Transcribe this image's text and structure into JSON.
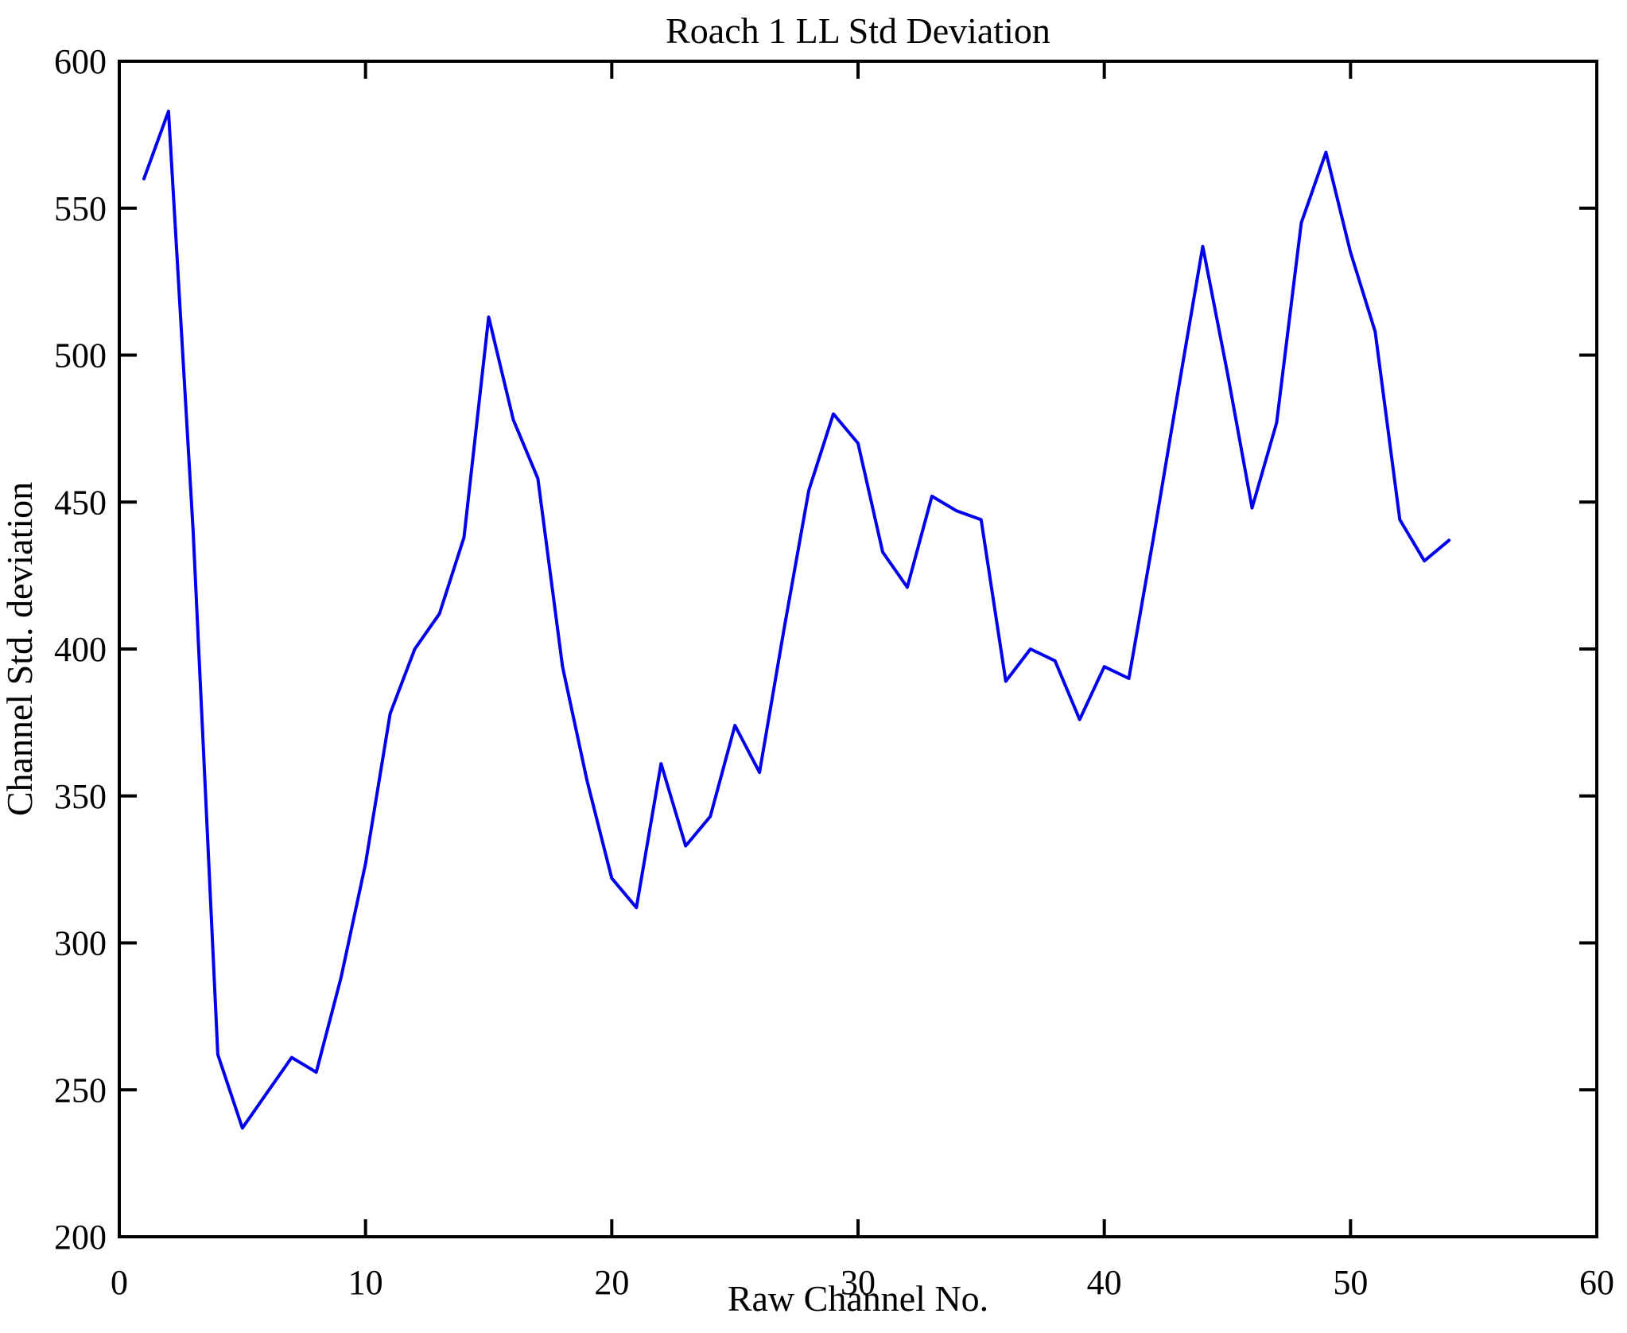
{
  "chart_data": {
    "type": "line",
    "title": "Roach 1 LL Std Deviation",
    "xlabel": "Raw Channel No.",
    "ylabel": "Channel Std. deviation",
    "xlim": [
      0,
      60
    ],
    "ylim": [
      200,
      600
    ],
    "xticks": [
      0,
      10,
      20,
      30,
      40,
      50,
      60
    ],
    "yticks": [
      200,
      250,
      300,
      350,
      400,
      450,
      500,
      550,
      600
    ],
    "grid": false,
    "legend": null,
    "line_color": "#0000EE",
    "axis_color": "#000000",
    "background": "#FFFFFF",
    "x": [
      1,
      2,
      3,
      4,
      5,
      6,
      7,
      8,
      9,
      10,
      11,
      12,
      13,
      14,
      15,
      16,
      17,
      18,
      19,
      20,
      21,
      22,
      23,
      24,
      25,
      26,
      27,
      28,
      29,
      30,
      31,
      32,
      33,
      34,
      35,
      36,
      37,
      38,
      39,
      40,
      41,
      42,
      43,
      44,
      45,
      46,
      47,
      48,
      49,
      50,
      51,
      52,
      53,
      54
    ],
    "y": [
      560,
      583,
      440,
      262,
      237,
      249,
      261,
      256,
      288,
      327,
      378,
      400,
      412,
      438,
      513,
      478,
      458,
      394,
      355,
      322,
      312,
      361,
      333,
      343,
      374,
      358,
      407,
      454,
      480,
      470,
      433,
      421,
      452,
      447,
      444,
      389,
      400,
      396,
      376,
      394,
      390,
      438,
      488,
      537,
      494,
      448,
      477,
      545,
      569,
      535,
      508,
      444,
      430,
      437
    ]
  }
}
